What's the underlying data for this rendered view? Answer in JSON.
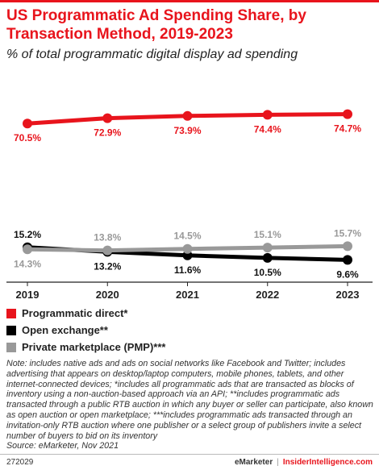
{
  "header": {
    "title": "US Programmatic Ad Spending Share, by Transaction Method, 2019-2023",
    "subtitle": "% of total programmatic digital display ad spending"
  },
  "chart_data": {
    "type": "line",
    "x": [
      "2019",
      "2020",
      "2021",
      "2022",
      "2023"
    ],
    "ylim": [
      0,
      80
    ],
    "grid": false,
    "series": [
      {
        "name": "Programmatic direct*",
        "color": "#e8141c",
        "values": [
          70.5,
          72.9,
          73.9,
          74.4,
          74.7
        ],
        "labels": [
          "70.5%",
          "72.9%",
          "73.9%",
          "74.4%",
          "74.7%"
        ],
        "label_position": "below"
      },
      {
        "name": "Open exchange**",
        "color": "#000000",
        "values": [
          15.2,
          13.2,
          11.6,
          10.5,
          9.6
        ],
        "labels": [
          "15.2%",
          "13.2%",
          "11.6%",
          "10.5%",
          "9.6%"
        ],
        "label_position": "above-first-then-below"
      },
      {
        "name": "Private marketplace (PMP)***",
        "color": "#999999",
        "values": [
          14.3,
          13.8,
          14.5,
          15.1,
          15.7
        ],
        "labels": [
          "14.3%",
          "13.8%",
          "14.5%",
          "15.1%",
          "15.7%"
        ],
        "label_position": "below-first-then-above"
      }
    ]
  },
  "legend": {
    "items": [
      {
        "label": "Programmatic direct*",
        "color": "#e8141c"
      },
      {
        "label": "Open exchange**",
        "color": "#000000"
      },
      {
        "label": "Private marketplace (PMP)***",
        "color": "#999999"
      }
    ]
  },
  "note": "Note: includes native ads and ads on social networks like Facebook and Twitter; includes advertising that appears on desktop/laptop computers, mobile phones, tablets, and other internet-connected devices; *includes all programmatic ads that are transacted as blocks of inventory using a non-auction-based approach via an API; **includes programmatic ads transacted through a public RTB auction in which any buyer or seller can participate, also known as open auction or open marketplace; ***includes programmatic ads transacted through an invitation-only RTB auction where one publisher or a select group of publishers invite a select number of buyers to bid on its inventory",
  "source": "Source: eMarketer, Nov 2021",
  "footer": {
    "chart_id": "272029",
    "brand": "eMarketer",
    "separator": "|",
    "site": "InsiderIntelligence.com"
  }
}
